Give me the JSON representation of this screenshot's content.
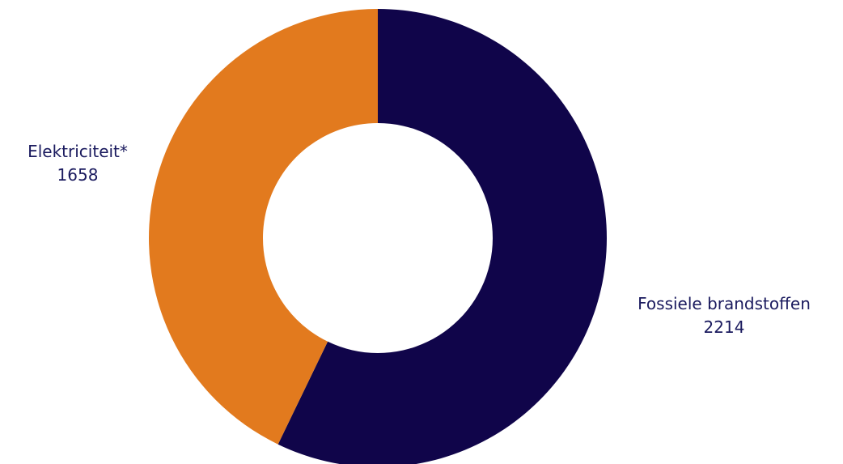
{
  "chart_data": {
    "type": "donut",
    "categories": [
      "Fossiele brandstoffen",
      "Elektriciteit*"
    ],
    "values": [
      2214,
      1658
    ],
    "colors": [
      "#10054a",
      "#e27a1e"
    ],
    "value_labels": [
      "2214",
      "1658"
    ],
    "label_color": "#1a1a5e",
    "background": "#ffffff",
    "start_angle_deg": 0,
    "direction": "clockwise",
    "legend": "none"
  }
}
